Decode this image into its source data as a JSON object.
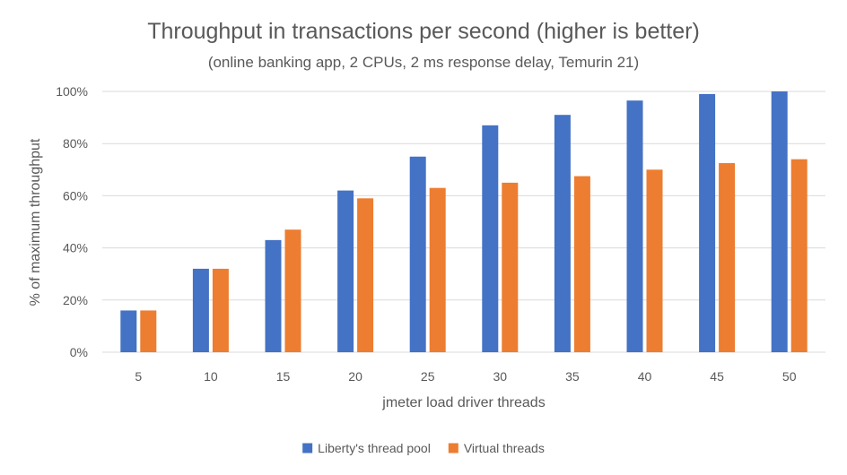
{
  "chart_data": {
    "type": "bar",
    "title": "Throughput in transactions per second (higher is better)",
    "subtitle": "(online banking app, 2 CPUs, 2 ms response delay, Temurin 21)",
    "xlabel": "jmeter load driver threads",
    "ylabel": "% of maximum throughput",
    "categories": [
      "5",
      "10",
      "15",
      "20",
      "25",
      "30",
      "35",
      "40",
      "45",
      "50"
    ],
    "ylim": [
      0,
      100
    ],
    "yticks": [
      "0%",
      "20%",
      "40%",
      "60%",
      "80%",
      "100%"
    ],
    "grid": true,
    "legend_position": "bottom",
    "series": [
      {
        "name": "Liberty's thread pool",
        "color": "#4472c4",
        "values": [
          16,
          32,
          43,
          62,
          75,
          87,
          91,
          96.5,
          99,
          100
        ]
      },
      {
        "name": "Virtual threads",
        "color": "#ed7d31",
        "values": [
          16,
          32,
          47,
          59,
          63,
          65,
          67.5,
          70,
          72.5,
          74
        ]
      }
    ]
  }
}
